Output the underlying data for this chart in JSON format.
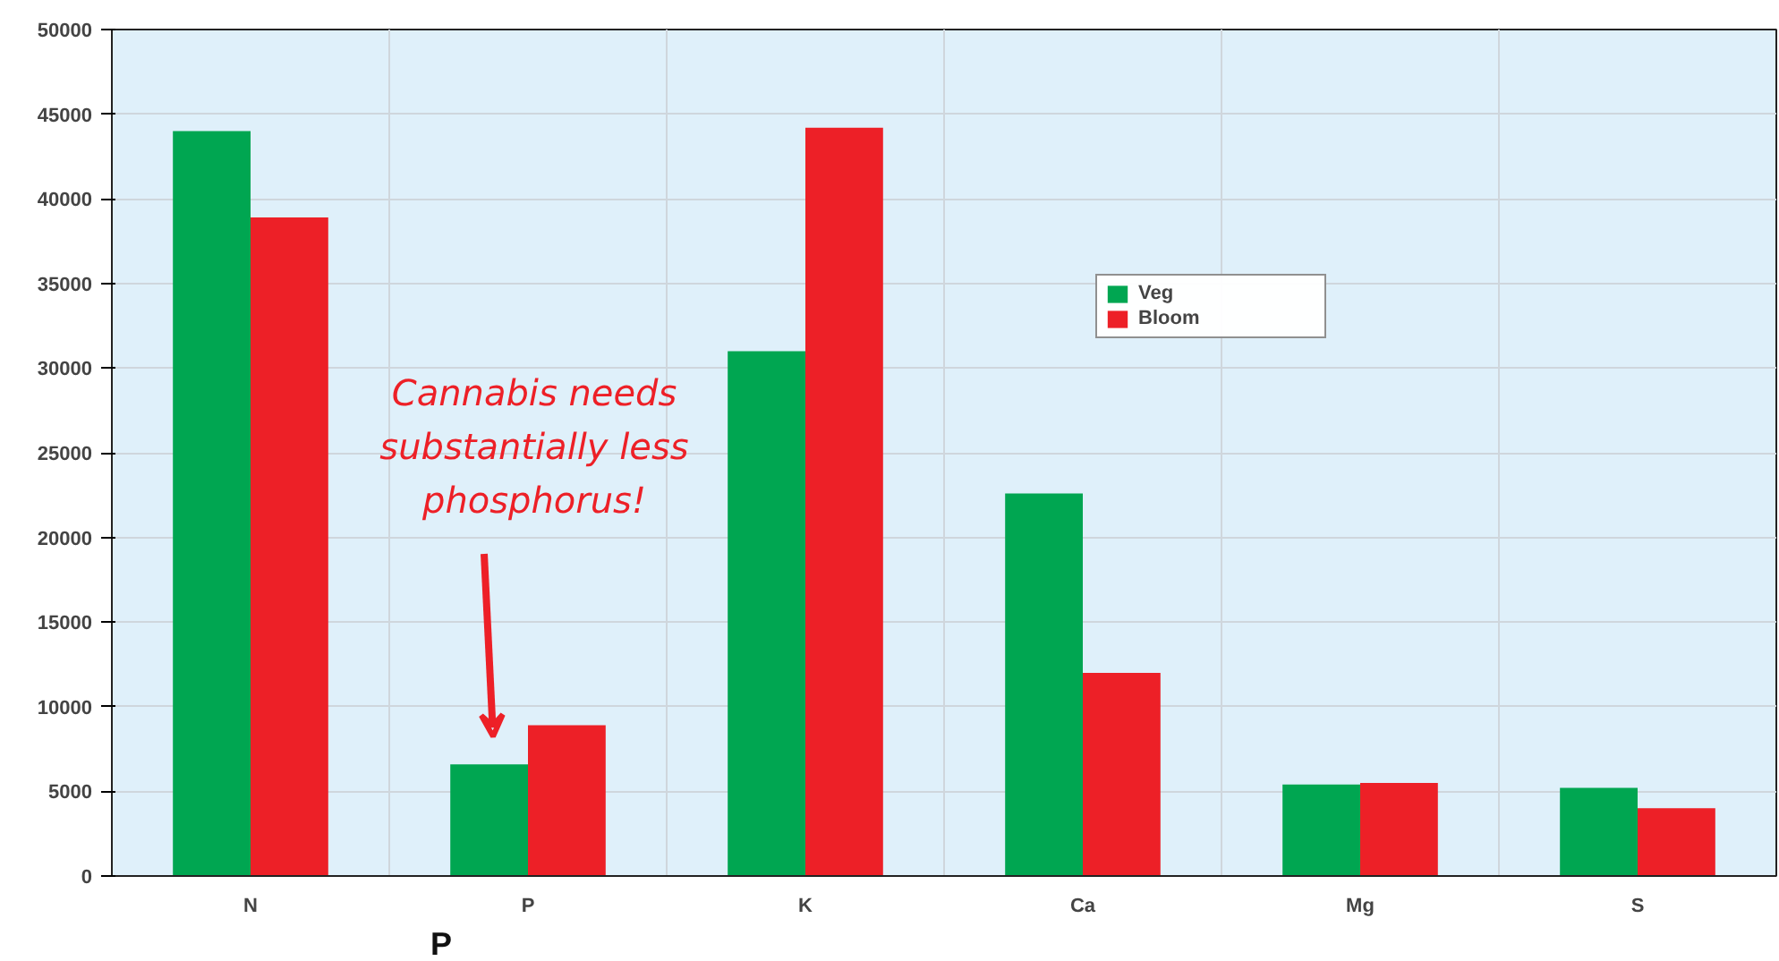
{
  "chart_data": {
    "type": "bar",
    "categories": [
      "N",
      "P",
      "K",
      "Ca",
      "Mg",
      "S"
    ],
    "series": [
      {
        "name": "Veg",
        "color": "#00a651",
        "values": [
          44000,
          6600,
          31000,
          22600,
          5400,
          5200
        ]
      },
      {
        "name": "Bloom",
        "color": "#ed2027",
        "values": [
          38900,
          8900,
          44200,
          12000,
          5500,
          4000
        ]
      }
    ],
    "ylim": [
      0,
      50000
    ],
    "yticks": [
      0,
      5000,
      10000,
      15000,
      20000,
      25000,
      30000,
      35000,
      40000,
      45000,
      50000
    ],
    "grid": true,
    "legend": "center",
    "annotations": [
      "Cannabis needs\nsubstantially less\nphosphorus!",
      "P"
    ]
  }
}
